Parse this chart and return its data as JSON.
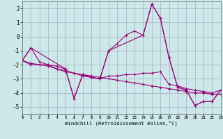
{
  "xlabel": "Windchill (Refroidissement éolien,°C)",
  "background_color": "#cce8e8",
  "grid_color": "#aaaacc",
  "line_color": "#990077",
  "xlim": [
    0,
    23
  ],
  "ylim": [
    -5.5,
    2.5
  ],
  "yticks": [
    -5,
    -4,
    -3,
    -2,
    -1,
    0,
    1,
    2
  ],
  "xticks": [
    0,
    1,
    2,
    3,
    4,
    5,
    6,
    7,
    8,
    9,
    10,
    11,
    12,
    13,
    14,
    15,
    16,
    17,
    18,
    19,
    20,
    21,
    22,
    23
  ],
  "series": [
    {
      "x": [
        0,
        1,
        2,
        3,
        4,
        5,
        6,
        7,
        8,
        9,
        10,
        11,
        12,
        13,
        14,
        15,
        16,
        17,
        18,
        19,
        20,
        21,
        22,
        23
      ],
      "y": [
        -1.7,
        -0.8,
        -1.8,
        -2.0,
        -2.1,
        -2.3,
        -4.4,
        -2.7,
        -2.9,
        -3.0,
        -1.0,
        -0.5,
        0.1,
        0.4,
        0.1,
        2.3,
        1.3,
        -1.5,
        -3.6,
        -3.8,
        -4.9,
        -4.6,
        -4.6,
        -3.8
      ]
    },
    {
      "x": [
        0,
        1,
        2,
        3,
        4,
        5,
        6,
        7,
        8,
        9,
        10,
        11,
        12,
        13,
        14,
        15,
        16,
        17,
        18,
        19,
        20,
        21,
        22,
        23
      ],
      "y": [
        -1.7,
        -2.0,
        -2.0,
        -2.0,
        -2.3,
        -2.5,
        -2.6,
        -2.8,
        -2.9,
        -3.0,
        -2.8,
        -2.8,
        -2.7,
        -2.7,
        -2.6,
        -2.6,
        -2.5,
        -3.4,
        -3.5,
        -3.7,
        -3.8,
        -3.9,
        -4.0,
        -3.8
      ]
    },
    {
      "x": [
        0,
        1,
        2,
        3,
        4,
        5,
        6,
        7,
        8,
        9,
        10,
        11,
        12,
        13,
        14,
        15,
        16,
        17,
        18,
        19,
        20,
        21,
        22,
        23
      ],
      "y": [
        -1.7,
        -1.9,
        -2.0,
        -2.1,
        -2.3,
        -2.4,
        -2.6,
        -2.7,
        -2.8,
        -2.9,
        -3.0,
        -3.1,
        -3.2,
        -3.3,
        -3.4,
        -3.5,
        -3.6,
        -3.7,
        -3.8,
        -3.9,
        -4.0,
        -4.0,
        -4.1,
        -4.1
      ]
    },
    {
      "x": [
        0,
        1,
        5,
        6,
        7,
        8,
        9,
        10,
        14,
        15,
        16,
        17,
        18,
        19,
        20,
        21,
        22,
        23
      ],
      "y": [
        -1.7,
        -0.8,
        -2.3,
        -4.4,
        -2.7,
        -2.9,
        -3.0,
        -1.0,
        0.1,
        2.3,
        1.3,
        -1.5,
        -3.6,
        -3.8,
        -4.9,
        -4.6,
        -4.6,
        -3.8
      ]
    }
  ]
}
